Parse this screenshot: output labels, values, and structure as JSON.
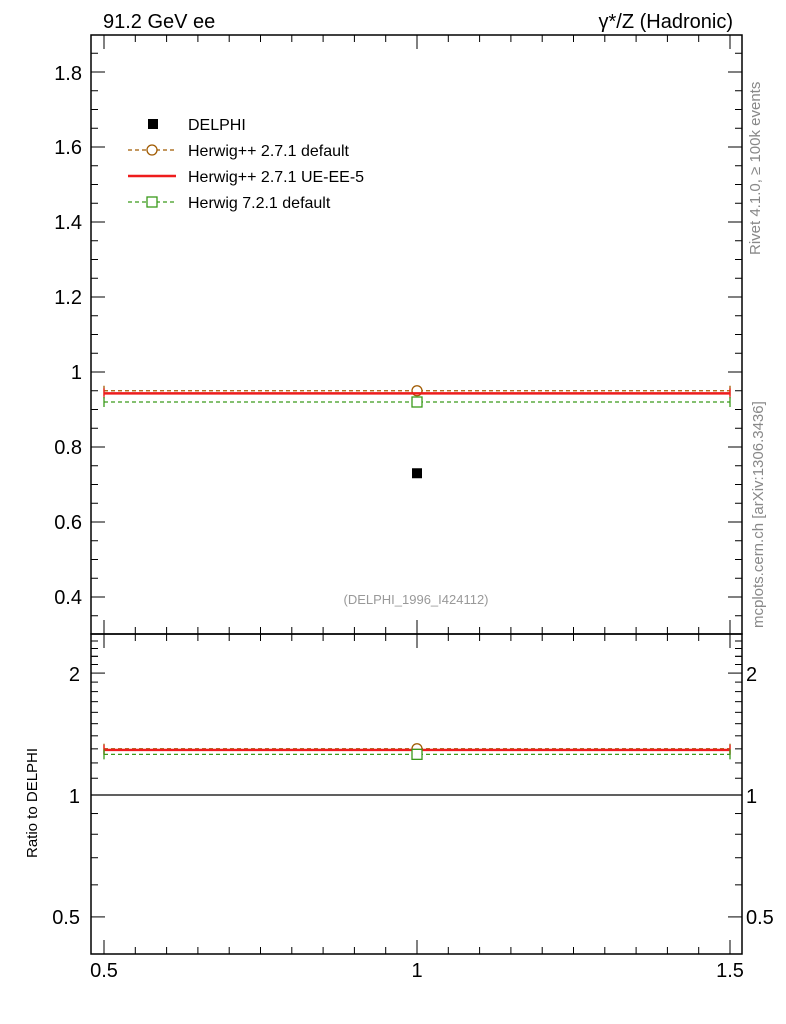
{
  "header": {
    "left": "91.2 GeV ee",
    "right": "γ*/Z (Hadronic)"
  },
  "side_labels": {
    "top": "Rivet 4.1.0, ≥ 100k events",
    "bottom": "mcplots.cern.ch [arXiv:1306.3436]"
  },
  "analysis_id": "(DELPHI_1996_I424112)",
  "chart_data": [
    {
      "type": "scatter",
      "panel": "main",
      "xlim": [
        0.5,
        1.5
      ],
      "ylim": [
        0.3,
        1.9
      ],
      "x_ticks": [
        0.5,
        1,
        1.5
      ],
      "y_ticks": [
        0.4,
        0.6,
        0.8,
        1.0,
        1.2,
        1.4,
        1.6,
        1.8
      ],
      "y_tick_labels": [
        "0.4",
        "0.6",
        "0.8",
        "1",
        "1.2",
        "1.4",
        "1.6",
        "1.8"
      ],
      "series": [
        {
          "name": "DELPHI",
          "marker": "filled-square",
          "color": "#000000",
          "x": 1.0,
          "value": 0.73
        },
        {
          "name": "Herwig++ 2.7.1 default",
          "marker": "open-circle",
          "line": "dashed",
          "color": "#a05a00",
          "x": 1.0,
          "value": 0.95
        },
        {
          "name": "Herwig++ 2.7.1 UE-EE-5",
          "marker": "none",
          "line": "solid",
          "color": "#ee1c1c",
          "x": 1.0,
          "value": 0.943
        },
        {
          "name": "Herwig 7.2.1 default",
          "marker": "open-square",
          "line": "dashed",
          "color": "#3a9a1a",
          "x": 1.0,
          "value": 0.92
        }
      ],
      "legend_position": "top-left"
    },
    {
      "type": "scatter",
      "panel": "ratio",
      "ylabel": "Ratio to DELPHI",
      "yscale": "log",
      "xlim": [
        0.5,
        1.5
      ],
      "ylim": [
        0.4,
        2.5
      ],
      "x_ticks": [
        0.5,
        1,
        1.5
      ],
      "x_tick_labels": [
        "0.5",
        "1",
        "1.5"
      ],
      "y_ticks": [
        0.5,
        1,
        2
      ],
      "y_tick_labels": [
        "0.5",
        "1",
        "2"
      ],
      "reference_line": 1.0,
      "series": [
        {
          "name": "Herwig++ 2.7.1 default",
          "color": "#a05a00",
          "x": 1.0,
          "value": 1.301
        },
        {
          "name": "Herwig++ 2.7.1 UE-EE-5",
          "color": "#ee1c1c",
          "x": 1.0,
          "value": 1.292
        },
        {
          "name": "Herwig 7.2.1 default",
          "color": "#3a9a1a",
          "x": 1.0,
          "value": 1.26
        }
      ]
    }
  ]
}
